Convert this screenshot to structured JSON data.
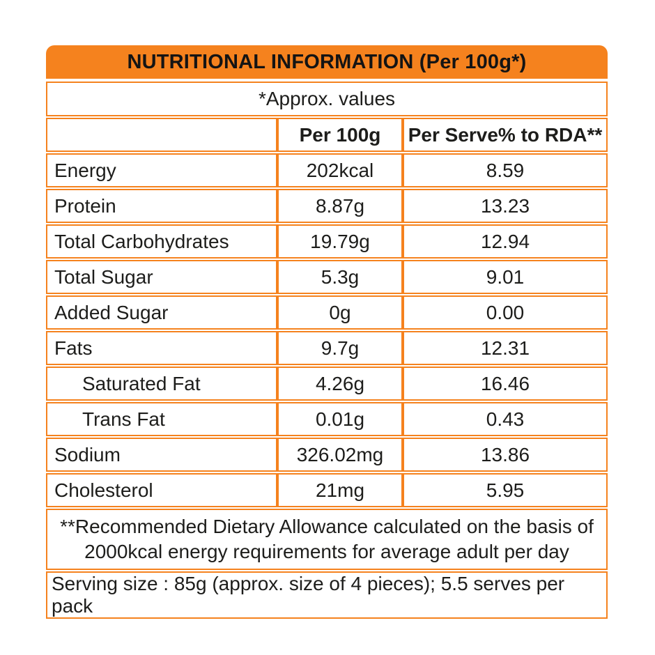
{
  "title": "NUTRITIONAL INFORMATION (Per 100g*)",
  "subtitle": "*Approx. values",
  "columns": {
    "nutrient": "",
    "per_100g": "Per 100g",
    "per_serve_rda": "Per Serve% to RDA**"
  },
  "rows": [
    {
      "label": "Energy",
      "per_100g": "202kcal",
      "rda_percent": "8.59"
    },
    {
      "label": "Protein",
      "per_100g": "8.87g",
      "rda_percent": "13.23"
    },
    {
      "label": "Total Carbohydrates",
      "per_100g": "19.79g",
      "rda_percent": "12.94"
    },
    {
      "label": "Total Sugar",
      "per_100g": "5.3g",
      "rda_percent": "9.01"
    },
    {
      "label": "Added Sugar",
      "per_100g": "0g",
      "rda_percent": "0.00"
    },
    {
      "label": "Fats",
      "per_100g": "9.7g",
      "rda_percent": "12.31"
    },
    {
      "label": "Saturated Fat",
      "per_100g": "4.26g",
      "rda_percent": "16.46"
    },
    {
      "label": "Trans Fat",
      "per_100g": "0.01g",
      "rda_percent": "0.43"
    },
    {
      "label": "Sodium",
      "per_100g": "326.02mg",
      "rda_percent": "13.86"
    },
    {
      "label": "Cholesterol",
      "per_100g": "21mg",
      "rda_percent": "5.95"
    }
  ],
  "footnotes": {
    "rda_note": "**Recommended Dietary Allowance calculated on the basis of 2000kcal energy requirements for average adult per day",
    "serving_note": "Serving size : 85g (approx. size of 4 pieces); 5.5 serves per pack"
  },
  "colors": {
    "accent_orange": "#F5821E",
    "text_dark": "#1D1D1B"
  }
}
